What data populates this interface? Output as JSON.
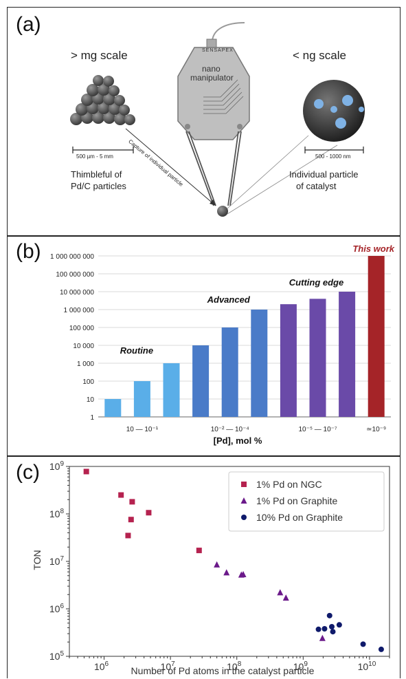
{
  "panel_a": {
    "label": "(a)",
    "left_title": "> mg scale",
    "right_title": "< ng scale",
    "device_brand": "SENSAPEX",
    "device_name": [
      "nano",
      "manipulator"
    ],
    "scale_left": "500 µm - 5 mm",
    "scale_right": "500 - 1000 nm",
    "caption_left": [
      "Thimbleful of",
      "Pd/C particles"
    ],
    "caption_right": [
      "Individual particle",
      "of catalyst"
    ],
    "arrow_text": "Capture of individual particle"
  },
  "panel_b": {
    "label": "(b)",
    "colors": {
      "routine": "#5aaee8",
      "advanced": "#4a7bc8",
      "cutting": "#6a4aa8",
      "this_work": "#a52428"
    }
  },
  "panel_c": {
    "label": "(c)",
    "colors": {
      "ngc": "#b5224f",
      "graphite1": "#6b1a8a",
      "graphite10": "#0f1a6b"
    }
  },
  "chart_data": [
    {
      "type": "bar",
      "yscale": "log",
      "ylim": [
        1,
        1000000000
      ],
      "ytick_labels": [
        "1",
        "10",
        "100",
        "1 000",
        "10 000",
        "100 000",
        "1 000 000",
        "10 000 000",
        "100 000 000",
        "1 000 000 000"
      ],
      "values": [
        10,
        100,
        1000,
        10000,
        100000,
        1000000,
        2000000,
        4000000,
        10000000,
        1000000000
      ],
      "bar_groups": [
        "routine",
        "routine",
        "routine",
        "advanced",
        "advanced",
        "advanced",
        "cutting",
        "cutting",
        "cutting",
        "this_work"
      ],
      "group_labels": [
        "10 — 10⁻¹",
        "10⁻² — 10⁻⁴",
        "10⁻⁵ — 10⁻⁷",
        "≃10⁻⁹"
      ],
      "annotations": [
        "Routine",
        "Advanced",
        "Cutting edge",
        "This work"
      ],
      "xlabel": "[Pd], mol %"
    },
    {
      "type": "scatter",
      "xscale": "log",
      "yscale": "log",
      "xlim": [
        300000,
        20000000000
      ],
      "ylim": [
        100000,
        1000000000
      ],
      "xlabel": "Number of Pd atoms in the catalyst particle",
      "ylabel": "TON",
      "legend_position": "top-right",
      "series": [
        {
          "name": "1% Pd on NGC",
          "marker": "square",
          "points": [
            [
              540000,
              780000000
            ],
            [
              1800000,
              250000000
            ],
            [
              2650000,
              180000000
            ],
            [
              4700000,
              106000000
            ],
            [
              2550000,
              76000000
            ],
            [
              2300000,
              35000000
            ],
            [
              27000000,
              17000000
            ]
          ]
        },
        {
          "name": "1% Pd on Graphite",
          "marker": "triangle",
          "points": [
            [
              50000000,
              8500000
            ],
            [
              70000000,
              5800000
            ],
            [
              117000000,
              5200000
            ],
            [
              125000000,
              5300000
            ],
            [
              450000000,
              2200000
            ],
            [
              550000000,
              1700000
            ],
            [
              1950000000,
              240000
            ]
          ]
        },
        {
          "name": "10% Pd on Graphite",
          "marker": "circle",
          "points": [
            [
              1700000000,
              370000
            ],
            [
              2100000000,
              380000
            ],
            [
              2500000000,
              720000
            ],
            [
              2800000000,
              330000
            ],
            [
              3500000000,
              460000
            ],
            [
              2700000000,
              420000
            ],
            [
              8000000000,
              180000
            ],
            [
              15000000000,
              140000
            ]
          ]
        }
      ]
    }
  ]
}
